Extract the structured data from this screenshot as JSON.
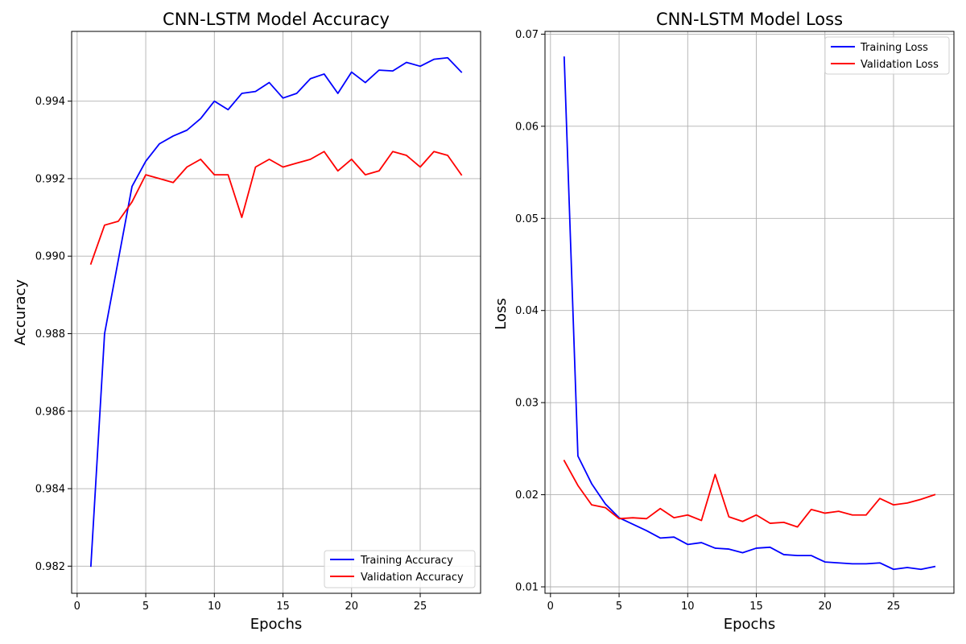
{
  "chart_data": [
    {
      "type": "line",
      "title": "CNN-LSTM Model Accuracy",
      "xlabel": "Epochs",
      "ylabel": "Accuracy",
      "xlim": [
        -0.4,
        29.4
      ],
      "ylim": [
        0.9813,
        0.9958
      ],
      "xticks": [
        0,
        5,
        10,
        15,
        20,
        25
      ],
      "xtick_labels": [
        "0",
        "5",
        "10",
        "15",
        "20",
        "25"
      ],
      "yticks": [
        0.982,
        0.984,
        0.986,
        0.988,
        0.99,
        0.992,
        0.994
      ],
      "ytick_labels": [
        "0.982",
        "0.984",
        "0.986",
        "0.988",
        "0.990",
        "0.992",
        "0.994"
      ],
      "grid": true,
      "legend_position": "lower-right",
      "series": [
        {
          "name": "Training Accuracy",
          "color": "#0000ff",
          "x": [
            1,
            2,
            3,
            4,
            5,
            6,
            7,
            8,
            9,
            10,
            11,
            12,
            13,
            14,
            15,
            16,
            17,
            18,
            19,
            20,
            21,
            22,
            23,
            24,
            25,
            26,
            27,
            28
          ],
          "y": [
            0.982,
            0.988,
            0.9899,
            0.9918,
            0.99245,
            0.9929,
            0.9931,
            0.99325,
            0.99355,
            0.994,
            0.99378,
            0.9942,
            0.99425,
            0.99448,
            0.99408,
            0.9942,
            0.99458,
            0.9947,
            0.9942,
            0.99475,
            0.99448,
            0.9948,
            0.99478,
            0.995,
            0.9949,
            0.99508,
            0.99512,
            0.99475
          ]
        },
        {
          "name": "Validation Accuracy",
          "color": "#ff0000",
          "x": [
            1,
            2,
            3,
            4,
            5,
            6,
            7,
            8,
            9,
            10,
            11,
            12,
            13,
            14,
            15,
            16,
            17,
            18,
            19,
            20,
            21,
            22,
            23,
            24,
            25,
            26,
            27,
            28
          ],
          "y": [
            0.9898,
            0.9908,
            0.9909,
            0.9914,
            0.9921,
            0.992,
            0.9919,
            0.9923,
            0.9925,
            0.9921,
            0.9921,
            0.991,
            0.9923,
            0.9925,
            0.9923,
            0.9924,
            0.9925,
            0.9927,
            0.9922,
            0.9925,
            0.9921,
            0.9922,
            0.9927,
            0.9926,
            0.9923,
            0.9927,
            0.9926,
            0.9921
          ]
        }
      ]
    },
    {
      "type": "line",
      "title": "CNN-LSTM Model Loss",
      "xlabel": "Epochs",
      "ylabel": "Loss",
      "xlim": [
        -0.4,
        29.4
      ],
      "ylim": [
        0.0093,
        0.0703
      ],
      "xticks": [
        0,
        5,
        10,
        15,
        20,
        25
      ],
      "xtick_labels": [
        "0",
        "5",
        "10",
        "15",
        "20",
        "25"
      ],
      "yticks": [
        0.01,
        0.02,
        0.03,
        0.04,
        0.05,
        0.06,
        0.07
      ],
      "ytick_labels": [
        "0.01",
        "0.02",
        "0.03",
        "0.04",
        "0.05",
        "0.06",
        "0.07"
      ],
      "grid": true,
      "legend_position": "upper-right",
      "series": [
        {
          "name": "Training Loss",
          "color": "#0000ff",
          "x": [
            1,
            2,
            3,
            4,
            5,
            6,
            7,
            8,
            9,
            10,
            11,
            12,
            13,
            14,
            15,
            16,
            17,
            18,
            19,
            20,
            21,
            22,
            23,
            24,
            25,
            26,
            27,
            28
          ],
          "y": [
            0.0675,
            0.0242,
            0.0212,
            0.019,
            0.0175,
            0.0168,
            0.0161,
            0.0153,
            0.0154,
            0.0146,
            0.0148,
            0.0142,
            0.0141,
            0.0137,
            0.0142,
            0.0143,
            0.0135,
            0.0134,
            0.0134,
            0.0127,
            0.0126,
            0.0125,
            0.0125,
            0.0126,
            0.0119,
            0.0121,
            0.0119,
            0.0122
          ]
        },
        {
          "name": "Validation Loss",
          "color": "#ff0000",
          "x": [
            1,
            2,
            3,
            4,
            5,
            6,
            7,
            8,
            9,
            10,
            11,
            12,
            13,
            14,
            15,
            16,
            17,
            18,
            19,
            20,
            21,
            22,
            23,
            24,
            25,
            26,
            27,
            28
          ],
          "y": [
            0.0237,
            0.021,
            0.0189,
            0.0186,
            0.0174,
            0.0175,
            0.0174,
            0.0185,
            0.0175,
            0.0178,
            0.0172,
            0.0222,
            0.0176,
            0.0171,
            0.0178,
            0.0169,
            0.017,
            0.0165,
            0.0184,
            0.018,
            0.0182,
            0.0178,
            0.0178,
            0.0196,
            0.0189,
            0.0191,
            0.0195,
            0.02
          ]
        }
      ]
    }
  ]
}
